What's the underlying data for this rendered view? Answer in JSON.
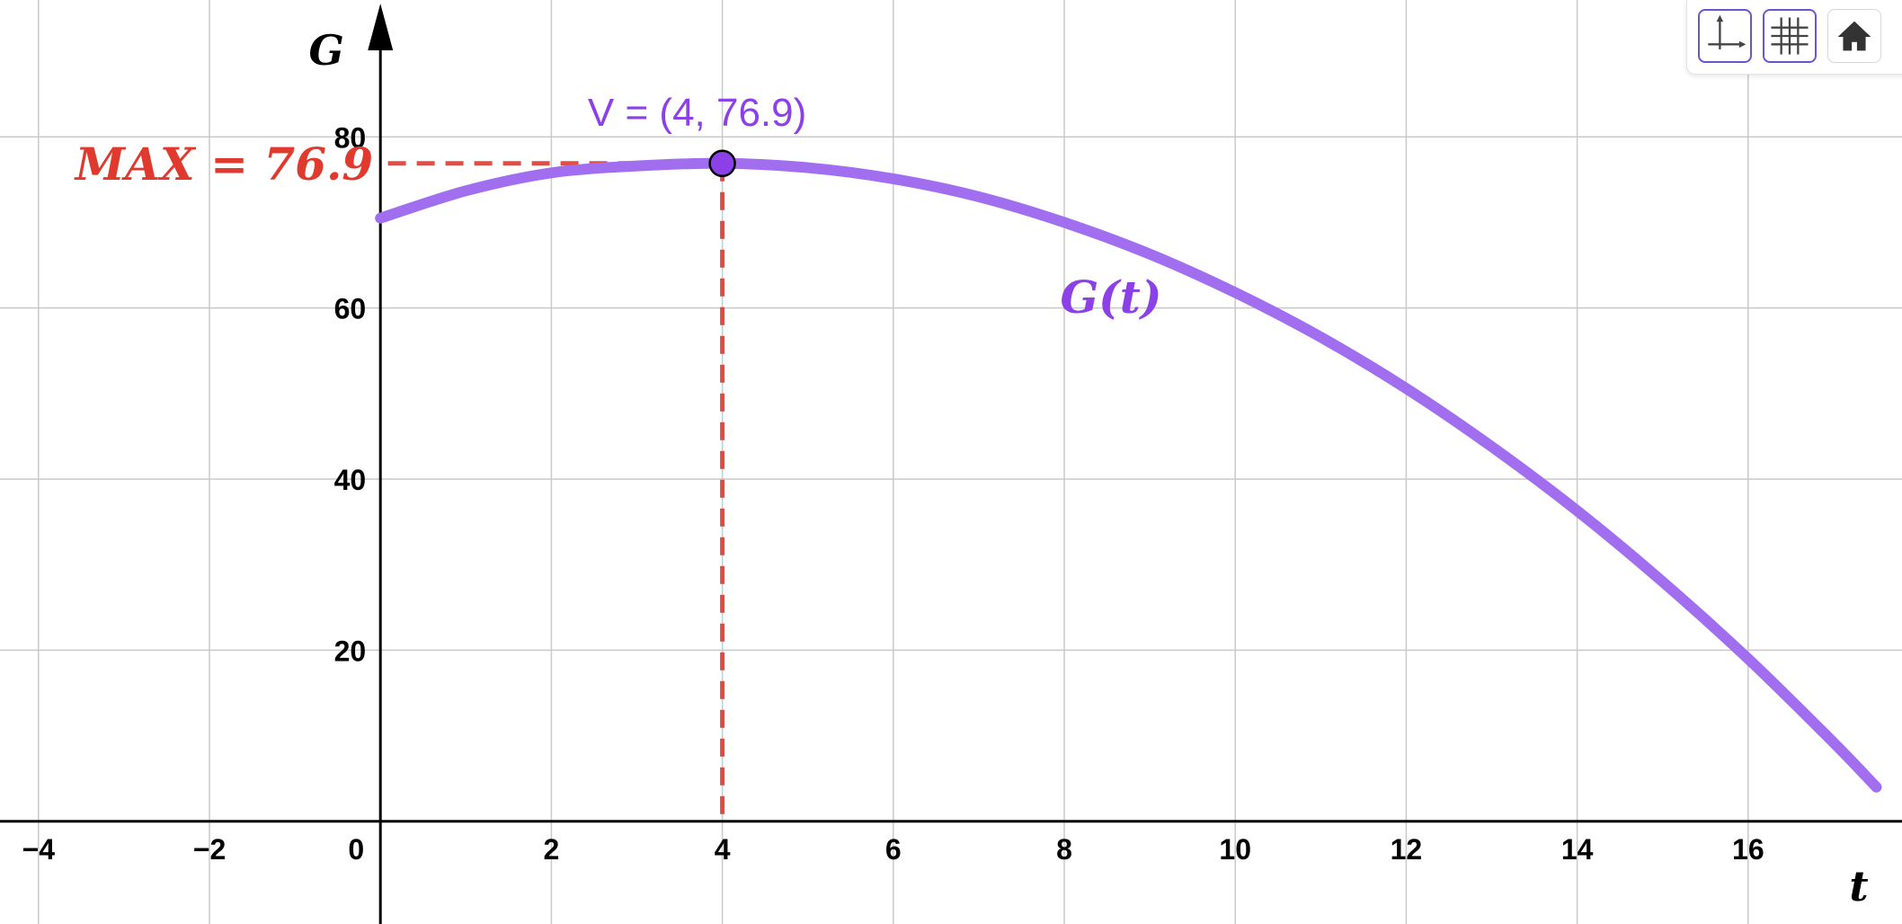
{
  "chart_data": {
    "type": "line",
    "function_label": "G(t)",
    "series": [
      {
        "name": "G(t)",
        "color": "#a16ef0",
        "x": [
          0,
          1,
          2,
          3,
          4,
          5,
          6,
          7,
          8,
          9,
          10,
          11,
          12,
          13,
          14,
          15,
          16,
          17,
          17.5
        ],
        "y": [
          70.5,
          73.7,
          75.8,
          76.6,
          76.9,
          76.4,
          75.1,
          73.0,
          70.0,
          66.3,
          61.8,
          56.6,
          50.6,
          43.8,
          36.3,
          28.0,
          19.0,
          9.2,
          4.0
        ]
      }
    ],
    "vertex": {
      "label": "V = (4, 76.9)",
      "x": 4,
      "y": 76.9,
      "color": "#8b40e8"
    },
    "max_annotation": {
      "text": "MAX = 76.9",
      "value": 76.9,
      "color": "#e03a2f"
    },
    "xlabel": "t",
    "ylabel": "G",
    "xlim": [
      -4.45,
      17.8
    ],
    "ylim": [
      -12,
      96
    ],
    "x_ticks": [
      {
        "value": -4,
        "label": "−4"
      },
      {
        "value": -2,
        "label": "−2"
      },
      {
        "value": 0,
        "label": "0"
      },
      {
        "value": 2,
        "label": "2"
      },
      {
        "value": 4,
        "label": "4"
      },
      {
        "value": 6,
        "label": "6"
      },
      {
        "value": 8,
        "label": "8"
      },
      {
        "value": 10,
        "label": "10"
      },
      {
        "value": 12,
        "label": "12"
      },
      {
        "value": 14,
        "label": "14"
      },
      {
        "value": 16,
        "label": "16"
      }
    ],
    "y_ticks": [
      {
        "value": 20,
        "label": "20"
      },
      {
        "value": 40,
        "label": "40"
      },
      {
        "value": 60,
        "label": "60"
      },
      {
        "value": 80,
        "label": "80"
      }
    ],
    "grid": true,
    "dashed_guides": {
      "color": "#e03a2f"
    }
  },
  "toolbar": {
    "buttons": [
      {
        "name": "axes-toggle-button",
        "icon": "axes-icon",
        "active": true
      },
      {
        "name": "grid-toggle-button",
        "icon": "grid-icon",
        "active": true
      },
      {
        "name": "home-button",
        "icon": "home-icon",
        "active": false
      }
    ]
  }
}
